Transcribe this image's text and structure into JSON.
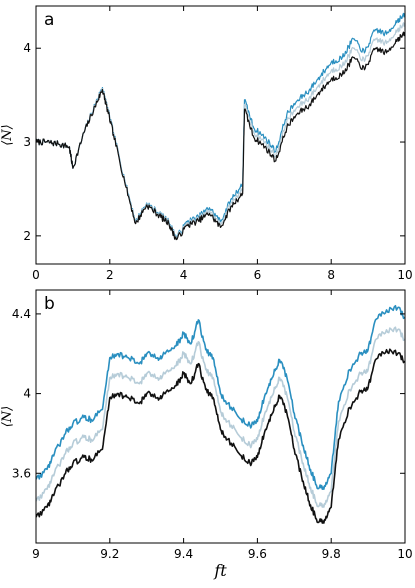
{
  "colors": {
    "blue": "#2a8fc0",
    "light": "#b6ccd8",
    "black": "#111111"
  },
  "chart_data": [
    {
      "type": "line",
      "panel_label": "a",
      "xlabel": "",
      "ylabel": "⟨N⟩",
      "xlim": [
        0,
        10
      ],
      "ylim": [
        1.7,
        4.45
      ],
      "xticks": [
        0,
        2,
        4,
        6,
        8,
        10
      ],
      "yticks": [
        2,
        3,
        4
      ],
      "series": [
        {
          "color": "blue",
          "x": [
            0,
            0.3,
            0.6,
            0.9,
            1.0,
            1.3,
            1.6,
            1.8,
            1.9,
            2.1,
            2.4,
            2.7,
            3.0,
            3.3,
            3.6,
            3.8,
            4.1,
            4.4,
            4.7,
            5.0,
            5.3,
            5.6,
            5.65,
            5.9,
            6.2,
            6.5,
            6.8,
            7.1,
            7.4,
            7.7,
            8.0,
            8.3,
            8.6,
            8.9,
            9.2,
            9.5,
            9.8,
            10.0
          ],
          "y": [
            3.0,
            3.0,
            2.98,
            2.95,
            2.72,
            3.1,
            3.4,
            3.58,
            3.42,
            3.1,
            2.6,
            2.15,
            2.35,
            2.25,
            2.15,
            1.98,
            2.15,
            2.2,
            2.3,
            2.15,
            2.4,
            2.55,
            3.45,
            3.15,
            3.05,
            2.9,
            3.3,
            3.45,
            3.55,
            3.7,
            3.85,
            3.9,
            4.1,
            3.95,
            4.2,
            4.15,
            4.3,
            4.35
          ]
        },
        {
          "color": "light",
          "x": [
            0,
            0.3,
            0.6,
            0.9,
            1.0,
            1.3,
            1.6,
            1.8,
            1.9,
            2.1,
            2.4,
            2.7,
            3.0,
            3.3,
            3.6,
            3.8,
            4.1,
            4.4,
            4.7,
            5.0,
            5.3,
            5.6,
            5.65,
            5.9,
            6.2,
            6.5,
            6.8,
            7.1,
            7.4,
            7.7,
            8.0,
            8.3,
            8.6,
            8.9,
            9.2,
            9.5,
            9.8,
            10.0
          ],
          "y": [
            3.0,
            3.0,
            2.98,
            2.95,
            2.72,
            3.1,
            3.39,
            3.57,
            3.41,
            3.09,
            2.59,
            2.14,
            2.34,
            2.24,
            2.14,
            1.97,
            2.13,
            2.18,
            2.27,
            2.12,
            2.36,
            2.5,
            3.4,
            3.1,
            3.0,
            2.85,
            3.23,
            3.38,
            3.47,
            3.62,
            3.76,
            3.81,
            4.0,
            3.86,
            4.1,
            4.05,
            4.2,
            4.25
          ]
        },
        {
          "color": "black",
          "x": [
            0,
            0.3,
            0.6,
            0.9,
            1.0,
            1.3,
            1.6,
            1.8,
            1.9,
            2.1,
            2.4,
            2.7,
            3.0,
            3.3,
            3.6,
            3.8,
            4.1,
            4.4,
            4.7,
            5.0,
            5.3,
            5.6,
            5.65,
            5.9,
            6.2,
            6.5,
            6.8,
            7.1,
            7.4,
            7.7,
            8.0,
            8.3,
            8.6,
            8.9,
            9.2,
            9.5,
            9.8,
            10.0
          ],
          "y": [
            3.0,
            3.0,
            2.98,
            2.95,
            2.72,
            3.1,
            3.38,
            3.56,
            3.4,
            3.08,
            2.58,
            2.13,
            2.33,
            2.23,
            2.13,
            1.96,
            2.11,
            2.16,
            2.24,
            2.09,
            2.32,
            2.45,
            3.35,
            3.05,
            2.95,
            2.8,
            3.16,
            3.31,
            3.39,
            3.54,
            3.67,
            3.72,
            3.9,
            3.77,
            4.0,
            3.95,
            4.1,
            4.15
          ]
        }
      ]
    },
    {
      "type": "line",
      "panel_label": "b",
      "xlabel": "ft",
      "ylabel": "⟨N⟩",
      "xlim": [
        9,
        10
      ],
      "ylim": [
        3.25,
        4.52
      ],
      "xticks": [
        9,
        9.2,
        9.4,
        9.6,
        9.8,
        10
      ],
      "ytick_labels": [
        "3.6",
        "4",
        "4.4"
      ],
      "yticks": [
        3.6,
        4,
        4.4
      ],
      "series": [
        {
          "color": "blue",
          "x": [
            9.0,
            9.03,
            9.05,
            9.08,
            9.1,
            9.13,
            9.15,
            9.18,
            9.2,
            9.22,
            9.25,
            9.28,
            9.3,
            9.33,
            9.35,
            9.38,
            9.4,
            9.42,
            9.44,
            9.46,
            9.48,
            9.5,
            9.52,
            9.55,
            9.58,
            9.6,
            9.62,
            9.64,
            9.66,
            9.68,
            9.7,
            9.72,
            9.74,
            9.76,
            9.78,
            9.8,
            9.82,
            9.85,
            9.88,
            9.9,
            9.92,
            9.95,
            9.98,
            10.0
          ],
          "y": [
            3.57,
            3.62,
            3.7,
            3.8,
            3.85,
            3.88,
            3.87,
            3.92,
            4.18,
            4.2,
            4.18,
            4.15,
            4.2,
            4.18,
            4.2,
            4.24,
            4.3,
            4.25,
            4.37,
            4.22,
            4.18,
            4.0,
            3.95,
            3.88,
            3.84,
            3.86,
            3.99,
            4.08,
            4.17,
            4.08,
            3.9,
            3.76,
            3.64,
            3.54,
            3.52,
            3.6,
            3.96,
            4.12,
            4.2,
            4.22,
            4.37,
            4.42,
            4.43,
            4.38
          ]
        },
        {
          "color": "light",
          "x": [
            9.0,
            9.03,
            9.05,
            9.08,
            9.1,
            9.13,
            9.15,
            9.18,
            9.2,
            9.22,
            9.25,
            9.28,
            9.3,
            9.33,
            9.35,
            9.38,
            9.4,
            9.42,
            9.44,
            9.46,
            9.48,
            9.5,
            9.52,
            9.55,
            9.58,
            9.6,
            9.62,
            9.64,
            9.66,
            9.68,
            9.7,
            9.72,
            9.74,
            9.76,
            9.78,
            9.8,
            9.82,
            9.85,
            9.88,
            9.9,
            9.92,
            9.95,
            9.98,
            10.0
          ],
          "y": [
            3.46,
            3.52,
            3.6,
            3.7,
            3.75,
            3.78,
            3.77,
            3.82,
            4.08,
            4.1,
            4.08,
            4.05,
            4.1,
            4.08,
            4.1,
            4.14,
            4.2,
            4.15,
            4.26,
            4.12,
            4.08,
            3.91,
            3.86,
            3.79,
            3.74,
            3.77,
            3.9,
            3.99,
            4.08,
            3.99,
            3.81,
            3.67,
            3.55,
            3.45,
            3.43,
            3.51,
            3.86,
            4.02,
            4.1,
            4.12,
            4.27,
            4.32,
            4.32,
            4.27
          ]
        },
        {
          "color": "black",
          "x": [
            9.0,
            9.03,
            9.05,
            9.08,
            9.1,
            9.13,
            9.15,
            9.18,
            9.2,
            9.22,
            9.25,
            9.28,
            9.3,
            9.33,
            9.35,
            9.38,
            9.4,
            9.42,
            9.44,
            9.46,
            9.48,
            9.5,
            9.52,
            9.55,
            9.58,
            9.6,
            9.62,
            9.64,
            9.66,
            9.68,
            9.7,
            9.72,
            9.74,
            9.76,
            9.78,
            9.8,
            9.82,
            9.85,
            9.88,
            9.9,
            9.92,
            9.95,
            9.98,
            10.0
          ],
          "y": [
            3.38,
            3.43,
            3.5,
            3.6,
            3.65,
            3.68,
            3.67,
            3.72,
            3.98,
            4.0,
            3.98,
            3.95,
            4.0,
            3.98,
            4.0,
            4.04,
            4.1,
            4.05,
            4.15,
            4.02,
            3.98,
            3.82,
            3.77,
            3.7,
            3.65,
            3.68,
            3.81,
            3.9,
            3.99,
            3.9,
            3.72,
            3.58,
            3.46,
            3.37,
            3.35,
            3.43,
            3.77,
            3.93,
            4.01,
            4.03,
            4.17,
            4.22,
            4.2,
            4.16
          ]
        }
      ]
    }
  ]
}
